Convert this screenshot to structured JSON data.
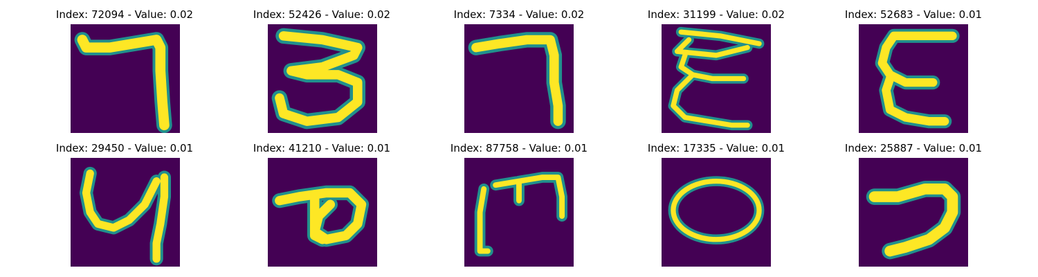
{
  "colors": {
    "background": "#440154",
    "edge": "#21908d",
    "mid": "#5ec962",
    "stroke": "#fde725"
  },
  "panels": [
    {
      "title": "Index: 72094 - Value: 0.02",
      "digit": "handwritten-7"
    },
    {
      "title": "Index: 52426 - Value: 0.02",
      "digit": "handwritten-3"
    },
    {
      "title": "Index: 7334 - Value: 0.02",
      "digit": "handwritten-7"
    },
    {
      "title": "Index: 31199 - Value: 0.02",
      "digit": "handwritten-3-inverted"
    },
    {
      "title": "Index: 52683 - Value: 0.01",
      "digit": "handwritten-3-inverted"
    },
    {
      "title": "Index: 29450 - Value: 0.01",
      "digit": "handwritten-4"
    },
    {
      "title": "Index: 41210 - Value: 0.01",
      "digit": "handwritten-9"
    },
    {
      "title": "Index: 87758 - Value: 0.01",
      "digit": "handwritten-3-rotated"
    },
    {
      "title": "Index: 17335 - Value: 0.01",
      "digit": "handwritten-0"
    },
    {
      "title": "Index: 25887 - Value: 0.01",
      "digit": "handwritten-7"
    }
  ]
}
